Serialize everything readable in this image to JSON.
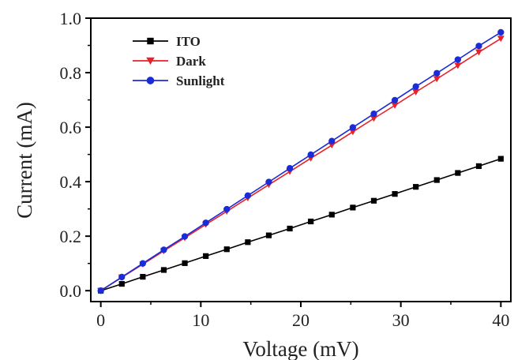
{
  "chart_data": {
    "type": "line",
    "xlabel": "Voltage (mV)",
    "ylabel": "Current (mA)",
    "xlim": [
      -1,
      41
    ],
    "ylim": [
      -0.04,
      1.0
    ],
    "xticks": [
      0,
      10,
      20,
      30,
      40
    ],
    "xtick_labels": [
      "0",
      "10",
      "20",
      "30",
      "40"
    ],
    "yticks": [
      0.0,
      0.2,
      0.4,
      0.6,
      0.8,
      1.0
    ],
    "ytick_labels": [
      "0.0",
      "0.2",
      "0.4",
      "0.6",
      "0.8",
      "1.0"
    ],
    "grid": false,
    "legend_placement": "top-left",
    "x": [
      0,
      2.1,
      4.2,
      6.3,
      8.4,
      10.5,
      12.6,
      14.7,
      16.8,
      18.9,
      21.0,
      23.1,
      25.2,
      27.3,
      29.4,
      31.5,
      33.6,
      35.7,
      37.8,
      40.0
    ],
    "series": [
      {
        "name": "ITO",
        "color": "#000000",
        "marker": "square",
        "values": [
          0.0,
          0.025,
          0.051,
          0.076,
          0.101,
          0.127,
          0.152,
          0.178,
          0.203,
          0.228,
          0.254,
          0.279,
          0.305,
          0.33,
          0.355,
          0.381,
          0.406,
          0.432,
          0.457,
          0.484
        ]
      },
      {
        "name": "Dark",
        "color": "#e8202a",
        "marker": "triangle-down",
        "values": [
          0.0,
          0.049,
          0.097,
          0.146,
          0.194,
          0.243,
          0.291,
          0.34,
          0.389,
          0.437,
          0.486,
          0.534,
          0.583,
          0.632,
          0.68,
          0.729,
          0.777,
          0.826,
          0.875,
          0.925
        ]
      },
      {
        "name": "Sunlight",
        "color": "#1a2bd8",
        "marker": "circle",
        "values": [
          0.0,
          0.05,
          0.1,
          0.15,
          0.199,
          0.249,
          0.299,
          0.349,
          0.399,
          0.449,
          0.499,
          0.549,
          0.599,
          0.649,
          0.699,
          0.749,
          0.798,
          0.848,
          0.898,
          0.948
        ]
      }
    ]
  }
}
